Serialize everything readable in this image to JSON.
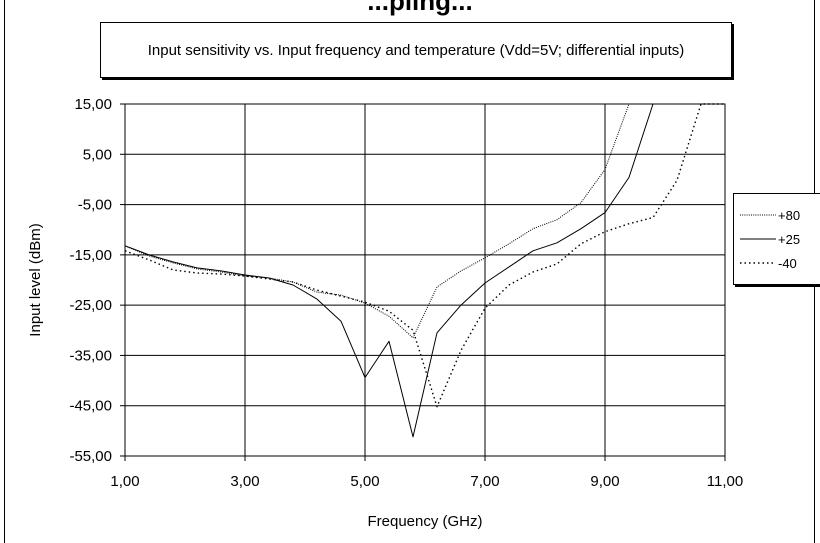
{
  "page": {
    "heading": "...pling..."
  },
  "chart_data": {
    "type": "line",
    "title": "Input sensitivity vs. Input frequency and temperature (Vdd=5V; differential inputs)",
    "xlabel": "Frequency (GHz)",
    "ylabel": "Input level (dBm)",
    "xlim": [
      1,
      11
    ],
    "ylim": [
      -55,
      15
    ],
    "x_ticks": [
      "1,00",
      "3,00",
      "5,00",
      "7,00",
      "9,00",
      "11,00"
    ],
    "y_ticks": [
      "15,00",
      "5,00",
      "-5,00",
      "-15,00",
      "-25,00",
      "-35,00",
      "-45,00",
      "-55,00"
    ],
    "grid": true,
    "legend_position": "right",
    "series": [
      {
        "name": "+80",
        "style": "dotted-fine",
        "color": "#000000",
        "x": [
          1.0,
          1.4,
          1.8,
          2.2,
          2.6,
          3.0,
          3.4,
          3.8,
          4.2,
          4.6,
          5.0,
          5.4,
          5.8,
          6.2,
          6.6,
          7.0,
          7.4,
          7.8,
          8.2,
          8.6,
          9.0,
          9.4,
          9.8,
          10.2,
          10.6,
          11.0
        ],
        "y": [
          -13.2,
          -15.2,
          -16.6,
          -17.8,
          -18.4,
          -19.2,
          -19.6,
          -20.4,
          -22.4,
          -23.0,
          -24.6,
          -27.2,
          -31.5,
          -21.4,
          -18.2,
          -15.6,
          -12.8,
          -9.8,
          -8.0,
          -4.6,
          2.0,
          15.0,
          15.0,
          15.0,
          15.0,
          15.0
        ]
      },
      {
        "name": "+25",
        "style": "solid",
        "color": "#000000",
        "x": [
          1.0,
          1.4,
          1.8,
          2.2,
          2.6,
          3.0,
          3.4,
          3.8,
          4.2,
          4.6,
          5.0,
          5.4,
          5.8,
          6.2,
          6.6,
          7.0,
          7.4,
          7.8,
          8.2,
          8.6,
          9.0,
          9.4,
          9.8,
          10.2,
          10.6,
          11.0
        ],
        "y": [
          -13.2,
          -15.0,
          -16.4,
          -17.6,
          -18.2,
          -19.0,
          -19.6,
          -21.0,
          -23.8,
          -28.2,
          -39.4,
          -32.2,
          -51.2,
          -30.5,
          -25.0,
          -20.6,
          -17.4,
          -14.2,
          -12.6,
          -9.8,
          -6.6,
          0.4,
          15.0,
          15.0,
          15.0,
          15.0
        ]
      },
      {
        "name": "-40",
        "style": "dotted-coarse",
        "color": "#000000",
        "x": [
          1.0,
          1.4,
          1.8,
          2.2,
          2.6,
          3.0,
          3.4,
          3.8,
          4.2,
          4.6,
          5.0,
          5.4,
          5.8,
          6.2,
          6.6,
          7.0,
          7.4,
          7.8,
          8.2,
          8.6,
          9.0,
          9.4,
          9.8,
          10.2,
          10.6,
          11.0
        ],
        "y": [
          -14.2,
          -16.0,
          -18.0,
          -18.6,
          -18.8,
          -19.2,
          -19.8,
          -20.4,
          -22.0,
          -23.2,
          -24.4,
          -26.2,
          -30.0,
          -45.2,
          -34.0,
          -25.6,
          -21.0,
          -18.4,
          -16.8,
          -12.8,
          -10.4,
          -8.8,
          -7.6,
          -0.2,
          15.0,
          15.0
        ]
      }
    ]
  }
}
